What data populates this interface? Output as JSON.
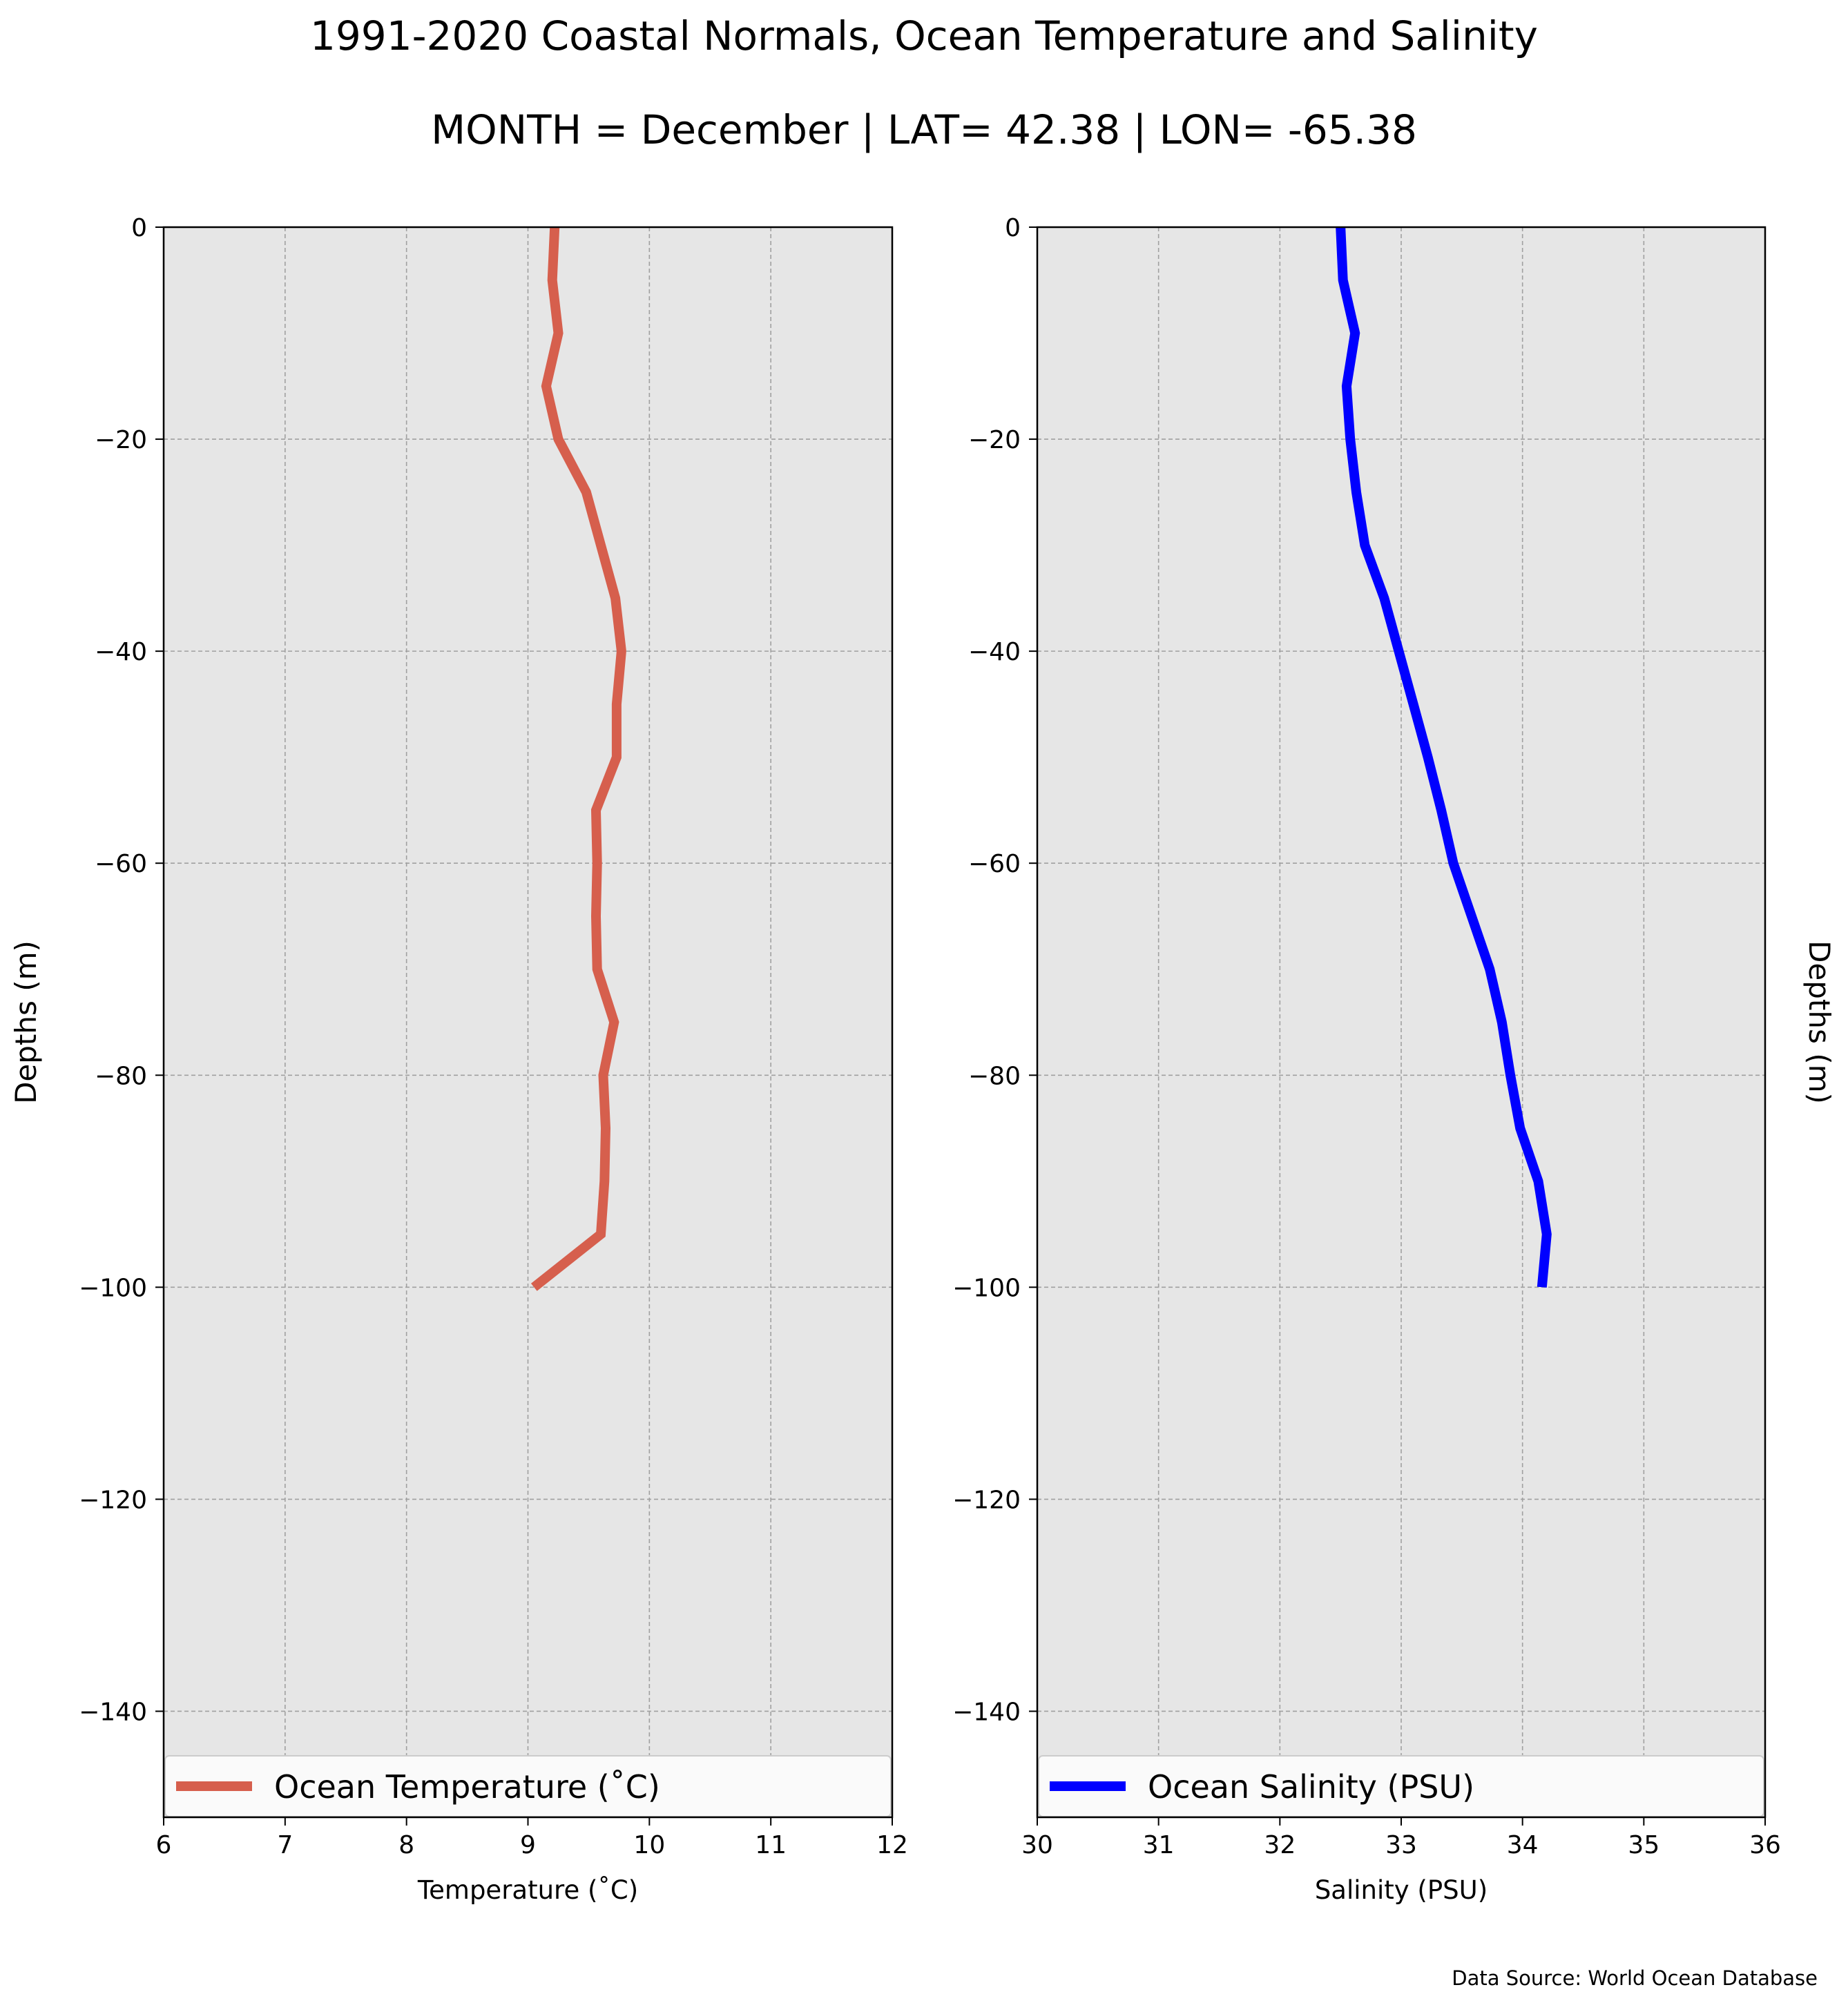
{
  "figure": {
    "title": "1991-2020 Coastal Normals, Ocean Temperature and Salinity",
    "subtitle": "MONTH = December | LAT= 42.38 | LON= -65.38",
    "source_note": "Data Source: World Ocean Database"
  },
  "chart_data": [
    {
      "type": "line",
      "xlabel": "Temperature ($^\\circ$C)",
      "xlabel_display": "Temperature (˚C)",
      "ylabel": "Depths (m)",
      "xlim": [
        6,
        12
      ],
      "ylim": [
        -150,
        0
      ],
      "xticks": [
        6,
        7,
        8,
        9,
        10,
        11,
        12
      ],
      "yticks": [
        0,
        -20,
        -40,
        -60,
        -80,
        -100,
        -120,
        -140
      ],
      "ytick_labels": [
        "0",
        "−20",
        "−40",
        "−60",
        "−80",
        "−100",
        "−120",
        "−140"
      ],
      "grid": true,
      "legend_position": "bottom",
      "series": [
        {
          "name": "Ocean Temperature (˚C)",
          "color": "#d65f4d",
          "y": [
            0,
            -5,
            -10,
            -15,
            -20,
            -25,
            -30,
            -35,
            -40,
            -45,
            -50,
            -55,
            -60,
            -65,
            -70,
            -75,
            -80,
            -85,
            -90,
            -95,
            -100
          ],
          "x": [
            9.22,
            9.2,
            9.25,
            9.15,
            9.25,
            9.48,
            9.6,
            9.72,
            9.77,
            9.73,
            9.73,
            9.56,
            9.57,
            9.56,
            9.57,
            9.71,
            9.62,
            9.64,
            9.63,
            9.6,
            9.05
          ]
        }
      ]
    },
    {
      "type": "line",
      "xlabel": "Salinity (PSU)",
      "ylabel": "Depths (m)",
      "xlim": [
        30,
        36
      ],
      "ylim": [
        -150,
        0
      ],
      "xticks": [
        30,
        31,
        32,
        33,
        34,
        35,
        36
      ],
      "yticks": [
        0,
        -20,
        -40,
        -60,
        -80,
        -100,
        -120,
        -140
      ],
      "ytick_labels": [
        "0",
        "−20",
        "−40",
        "−60",
        "−80",
        "−100",
        "−120",
        "−140"
      ],
      "grid": true,
      "legend_position": "bottom",
      "series": [
        {
          "name": "Ocean Salinity (PSU)",
          "color": "#0000ff",
          "y": [
            0,
            -5,
            -10,
            -15,
            -20,
            -25,
            -30,
            -35,
            -40,
            -45,
            -50,
            -55,
            -60,
            -65,
            -70,
            -75,
            -80,
            -85,
            -90,
            -95,
            -100
          ],
          "x": [
            32.5,
            32.52,
            32.62,
            32.55,
            32.58,
            32.63,
            32.7,
            32.86,
            32.98,
            33.1,
            33.22,
            33.33,
            33.43,
            33.58,
            33.73,
            33.83,
            33.9,
            33.98,
            34.13,
            34.2,
            34.16
          ]
        }
      ]
    }
  ]
}
